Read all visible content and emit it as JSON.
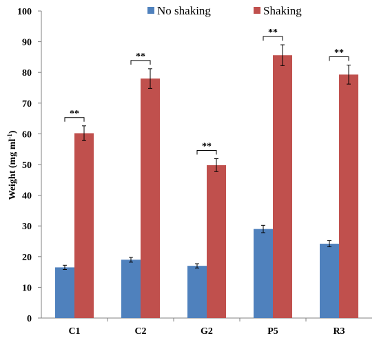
{
  "chart_data": {
    "type": "bar",
    "categories": [
      "C1",
      "C2",
      "G2",
      "P5",
      "R3"
    ],
    "series": [
      {
        "name": "No shaking",
        "values": [
          16.5,
          19.0,
          17.0,
          29.0,
          24.2
        ],
        "errors": [
          0.7,
          0.8,
          0.7,
          1.2,
          1.0
        ],
        "color": "#4f81bd"
      },
      {
        "name": "Shaking",
        "values": [
          60.2,
          78.0,
          49.8,
          85.6,
          79.3
        ],
        "errors": [
          2.4,
          3.2,
          2.1,
          3.4,
          3.1
        ],
        "color": "#c0504d"
      }
    ],
    "ylabel_main": "Weight  (mg  ml",
    "ylabel_sup": "-1",
    "ylabel_close": ")",
    "ylim": [
      0,
      100
    ],
    "yticks": [
      "0",
      "10",
      "20",
      "30",
      "40",
      "50",
      "60",
      "70",
      "80",
      "90",
      "100"
    ],
    "significance": [
      "**",
      "**",
      "**",
      "**",
      "**"
    ],
    "legend_position": "top"
  }
}
